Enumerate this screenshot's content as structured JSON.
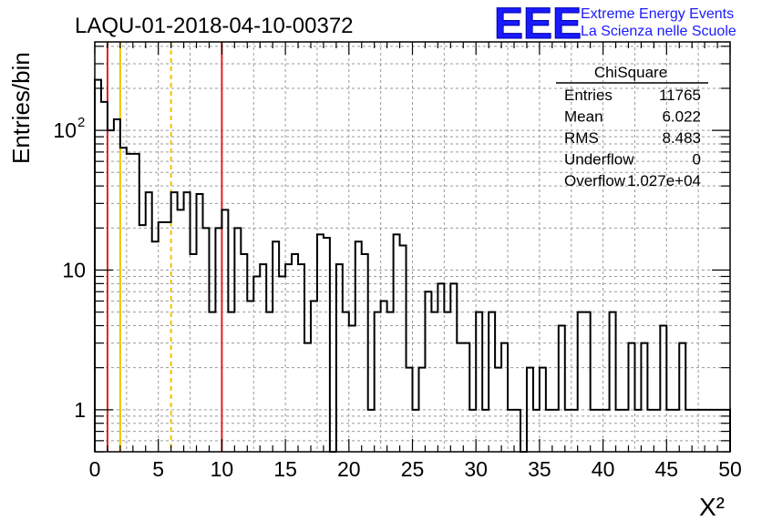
{
  "header": {
    "run_title": "LAQU-01-2018-04-10-00372",
    "logo_text": "EEE",
    "project_line1": "Extreme Energy Events",
    "project_line2": "La Scienza nelle Scuole",
    "logo_color": "#1a1aff"
  },
  "stats_box": {
    "title": "ChiSquare",
    "rows": [
      {
        "label": "Entries",
        "value": "11765"
      },
      {
        "label": "Mean",
        "value": "6.022"
      },
      {
        "label": "RMS",
        "value": "8.483"
      },
      {
        "label": "Underflow",
        "value": "0"
      },
      {
        "label": "Overflow",
        "value": "1.027e+04"
      }
    ]
  },
  "chart_data": {
    "type": "histogram",
    "xlabel": "X²",
    "ylabel": "Entries/bin",
    "xlim": [
      0,
      50
    ],
    "ylim": [
      0.5,
      430
    ],
    "y_scale": "log",
    "grid": true,
    "bin_width": 0.5,
    "x_ticks": [
      "0",
      "5",
      "10",
      "15",
      "20",
      "25",
      "30",
      "35",
      "40",
      "45",
      "50"
    ],
    "y_ticks": [
      {
        "value": 1,
        "label": "1"
      },
      {
        "value": 10,
        "label": "10"
      },
      {
        "value": 100,
        "label": "10",
        "exponent": "2"
      }
    ],
    "values": [
      230,
      160,
      100,
      120,
      75,
      68,
      68,
      21,
      36,
      16,
      22,
      22,
      36,
      27,
      36,
      13,
      35,
      20,
      5,
      20,
      27,
      5,
      20,
      13,
      6,
      9,
      11,
      5,
      16,
      9,
      11,
      13,
      11,
      3,
      6,
      18,
      17,
      0,
      11,
      5,
      4,
      16,
      13,
      1,
      5,
      6,
      5,
      18,
      15,
      2,
      1,
      2,
      7,
      5,
      8,
      5,
      8,
      3,
      3,
      1,
      5,
      1,
      5,
      2,
      3,
      1,
      1,
      0,
      2,
      1,
      2,
      1,
      1,
      4,
      1,
      1,
      5,
      5,
      1,
      1,
      1,
      5,
      1,
      1,
      3,
      1,
      3,
      1,
      1,
      4,
      1,
      1,
      3,
      1,
      1,
      1,
      1,
      1,
      1,
      1
    ],
    "vertical_lines": [
      {
        "x": 1.0,
        "color": "#dd2222",
        "style": "solid"
      },
      {
        "x": 2.0,
        "color": "#f2c200",
        "style": "solid"
      },
      {
        "x": 6.0,
        "color": "#f2c200",
        "style": "dashed"
      },
      {
        "x": 10.0,
        "color": "#dd2222",
        "style": "solid"
      }
    ]
  }
}
